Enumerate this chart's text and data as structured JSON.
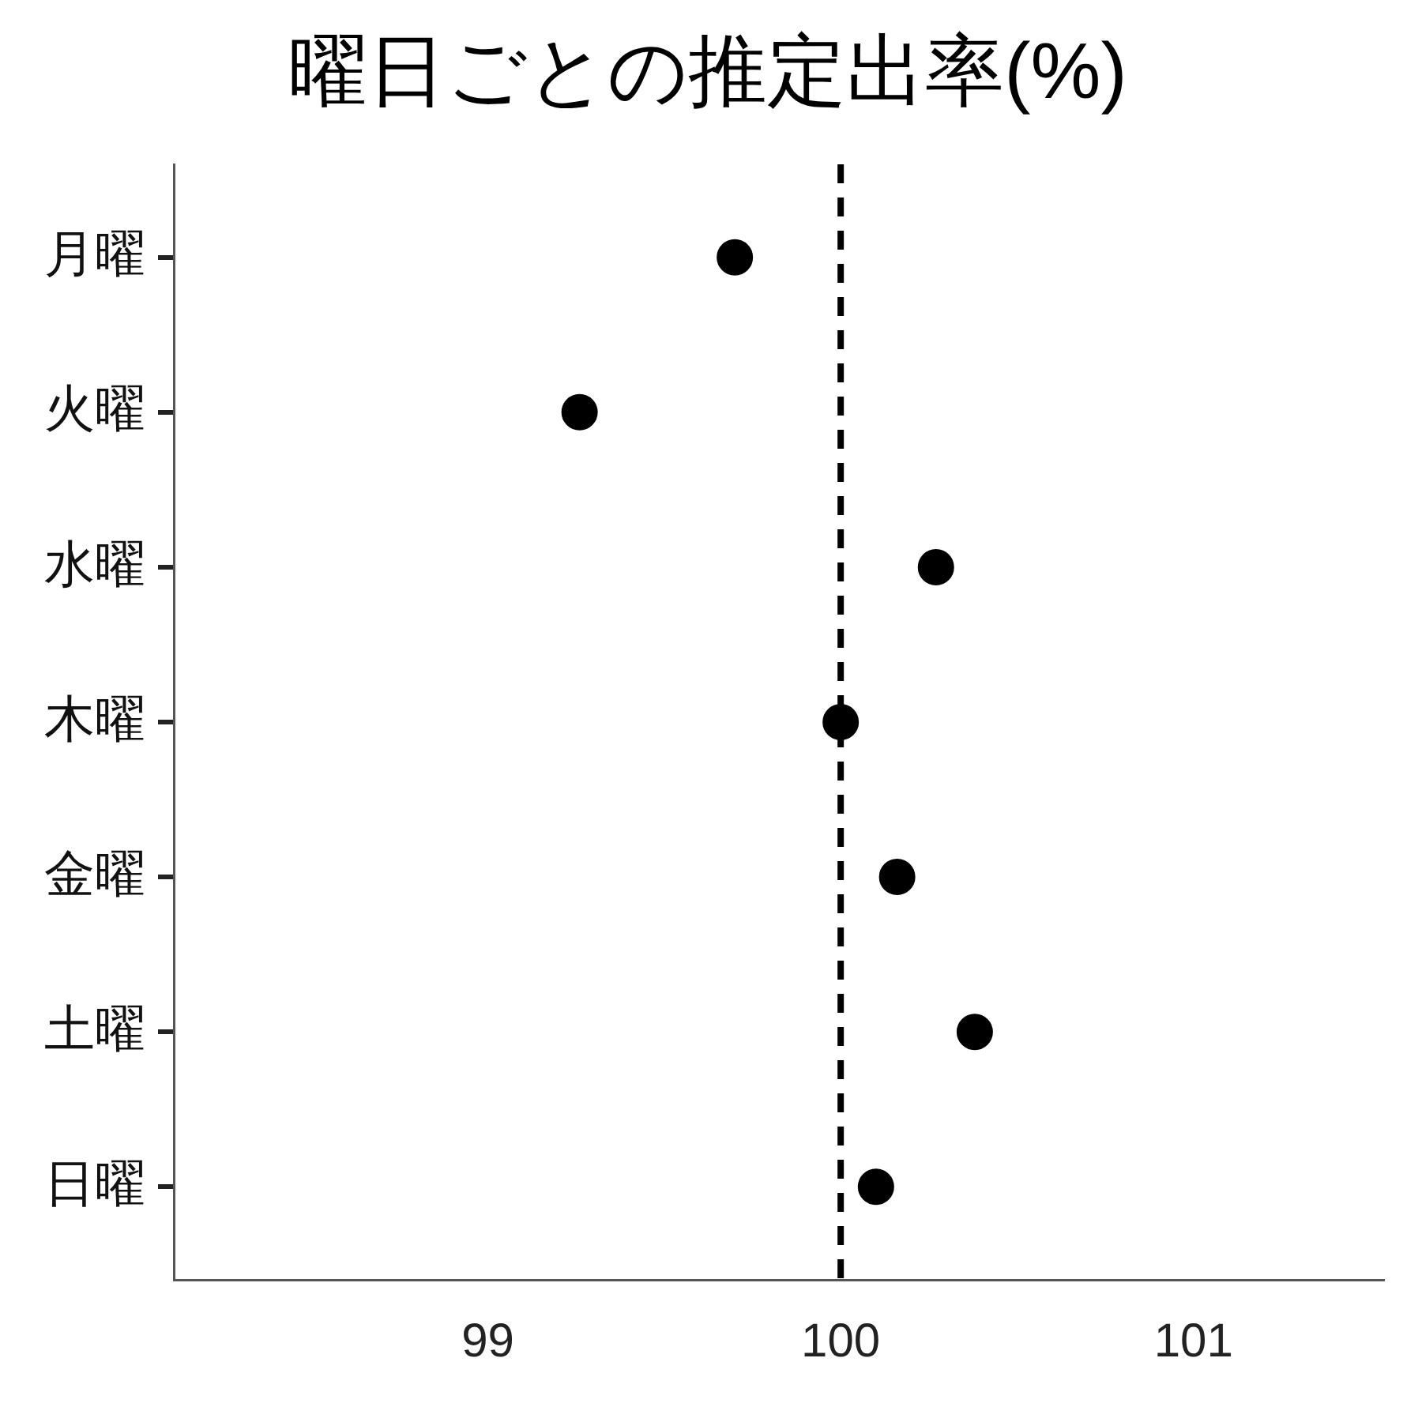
{
  "chart_data": {
    "type": "scatter",
    "orientation": "horizontal",
    "title": "曜日ごとの推定出率(%)",
    "categories": [
      "月曜",
      "火曜",
      "水曜",
      "木曜",
      "金曜",
      "土曜",
      "日曜"
    ],
    "values": [
      99.7,
      99.26,
      100.27,
      100.0,
      100.16,
      100.38,
      100.1
    ],
    "color": "#000000",
    "marker": "circle",
    "grid": false,
    "xlim": [
      98.11,
      101.54
    ],
    "xticks": [
      99,
      100,
      101
    ],
    "ref_lines": [
      {
        "axis": "x",
        "value": 100,
        "line_style": "dashed",
        "color": "#000000"
      }
    ]
  }
}
